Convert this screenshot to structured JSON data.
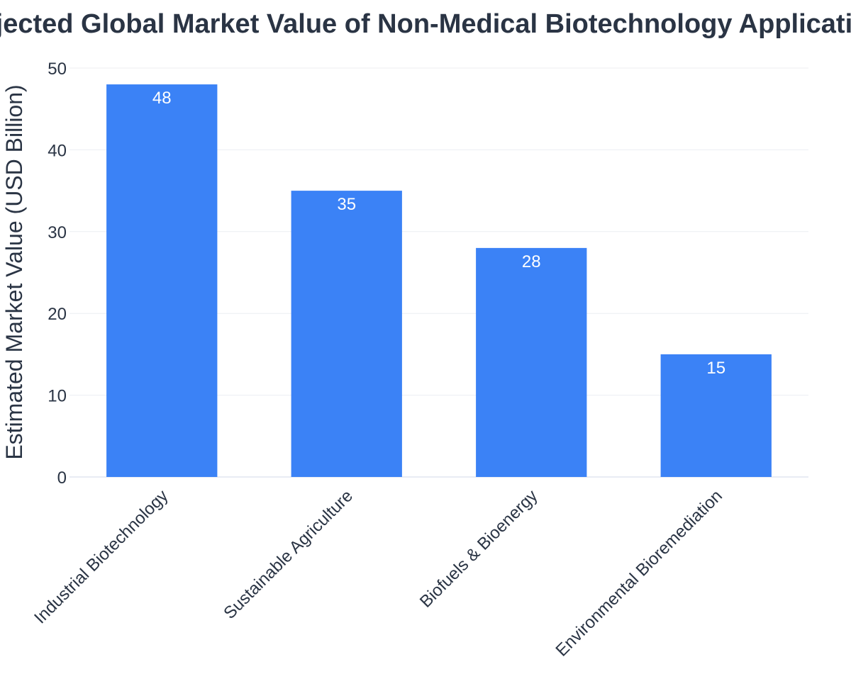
{
  "chart_data": {
    "type": "bar",
    "title": "Projected Global Market Value of Non-Medical Biotechnology Applications",
    "xlabel": "",
    "ylabel": "Estimated Market Value (USD Billion)",
    "categories": [
      "Industrial Biotechnology",
      "Sustainable Agriculture",
      "Biofuels & Bioenergy",
      "Environmental Bioremediation"
    ],
    "values": [
      48,
      35,
      28,
      15
    ],
    "ylim": [
      0,
      50
    ],
    "yticks": [
      0,
      10,
      20,
      30,
      40,
      50
    ],
    "grid": true,
    "legend": "none",
    "colors": {
      "bar": "#3b82f6",
      "text": "#2a3444",
      "grid": "#eceef2",
      "bar_label": "#ffffff"
    }
  }
}
